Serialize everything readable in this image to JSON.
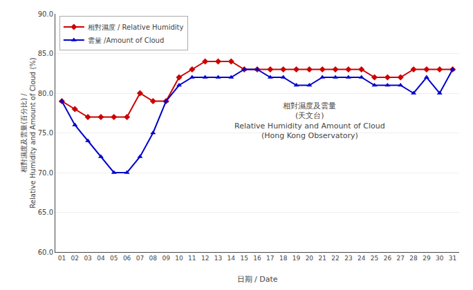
{
  "chart_data": {
    "type": "line",
    "xlabel": "日期 / Date",
    "ylabel": [
      "相對濕度及雲量(百分比) /",
      "Relative Humidity and Amount of Cloud (%)"
    ],
    "annotations": [
      "相對濕度及雲量",
      "(天文台)",
      "Relative Humidity and Amount of Cloud",
      "(Hong Kong Observatory)"
    ],
    "x": [
      1,
      2,
      3,
      4,
      5,
      6,
      7,
      8,
      9,
      10,
      11,
      12,
      13,
      14,
      15,
      16,
      17,
      18,
      19,
      20,
      21,
      22,
      23,
      24,
      25,
      26,
      27,
      28,
      29,
      30,
      31
    ],
    "xlim": [
      0.5,
      31.5
    ],
    "xticks": [
      {
        "value": 1,
        "label": "01"
      },
      {
        "value": 2,
        "label": "02"
      },
      {
        "value": 3,
        "label": "03"
      },
      {
        "value": 4,
        "label": "04"
      },
      {
        "value": 5,
        "label": "05"
      },
      {
        "value": 6,
        "label": "06"
      },
      {
        "value": 7,
        "label": "07"
      },
      {
        "value": 8,
        "label": "08"
      },
      {
        "value": 9,
        "label": "09"
      },
      {
        "value": 10,
        "label": "10"
      },
      {
        "value": 11,
        "label": "11"
      },
      {
        "value": 12,
        "label": "12"
      },
      {
        "value": 13,
        "label": "13"
      },
      {
        "value": 14,
        "label": "14"
      },
      {
        "value": 15,
        "label": "15"
      },
      {
        "value": 16,
        "label": "16"
      },
      {
        "value": 17,
        "label": "17"
      },
      {
        "value": 18,
        "label": "18"
      },
      {
        "value": 19,
        "label": "19"
      },
      {
        "value": 20,
        "label": "20"
      },
      {
        "value": 21,
        "label": "21"
      },
      {
        "value": 22,
        "label": "22"
      },
      {
        "value": 23,
        "label": "23"
      },
      {
        "value": 24,
        "label": "24"
      },
      {
        "value": 25,
        "label": "25"
      },
      {
        "value": 26,
        "label": "26"
      },
      {
        "value": 27,
        "label": "27"
      },
      {
        "value": 28,
        "label": "28"
      },
      {
        "value": 29,
        "label": "29"
      },
      {
        "value": 30,
        "label": "30"
      },
      {
        "value": 31,
        "label": "31"
      }
    ],
    "ylim": [
      60.0,
      90.0
    ],
    "yticks": [
      {
        "value": 60,
        "label": "60.0"
      },
      {
        "value": 65,
        "label": "65.0"
      },
      {
        "value": 70,
        "label": "70.0"
      },
      {
        "value": 75,
        "label": "75.0"
      },
      {
        "value": 80,
        "label": "80.0"
      },
      {
        "value": 85,
        "label": "85.0"
      },
      {
        "value": 90,
        "label": "90.0"
      }
    ],
    "grid": true,
    "legend": "upper left",
    "series": [
      {
        "name": "相對濕度 / Relative Humidity",
        "color": "#cc0000",
        "marker": "diamond",
        "values": [
          79,
          78,
          77,
          77,
          77,
          77,
          80,
          79,
          79,
          82,
          83,
          84,
          84,
          84,
          83,
          83,
          83,
          83,
          83,
          83,
          83,
          83,
          83,
          83,
          82,
          82,
          82,
          83,
          83,
          83,
          83
        ]
      },
      {
        "name": "雲量 /Amount of Cloud",
        "color": "#0000cc",
        "marker": "triangle-up",
        "values": [
          79,
          76,
          74,
          72,
          70,
          70,
          72,
          75,
          79,
          81,
          82,
          82,
          82,
          82,
          83,
          83,
          82,
          82,
          81,
          81,
          82,
          82,
          82,
          82,
          81,
          81,
          81,
          80,
          82,
          80,
          83
        ]
      }
    ]
  }
}
